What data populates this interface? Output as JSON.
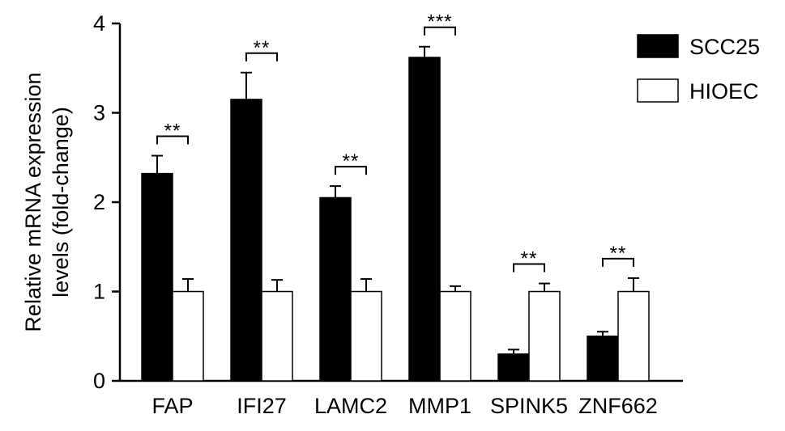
{
  "chart_data": {
    "type": "bar",
    "ylabel_lines": [
      "Relative mRNA expression",
      "levels (fold-change)"
    ],
    "categories": [
      "FAP",
      "IFI27",
      "LAMC2",
      "MMP1",
      "SPINK5",
      "ZNF662"
    ],
    "series": [
      {
        "name": "SCC25",
        "color": "#000000",
        "values": [
          2.32,
          3.15,
          2.05,
          3.62,
          0.3,
          0.5
        ],
        "errors": [
          0.2,
          0.3,
          0.13,
          0.12,
          0.05,
          0.05
        ]
      },
      {
        "name": "HIOEC",
        "color": "#ffffff",
        "values": [
          1.0,
          1.0,
          1.0,
          1.0,
          1.0,
          1.0
        ],
        "errors": [
          0.14,
          0.13,
          0.14,
          0.06,
          0.09,
          0.15
        ]
      }
    ],
    "significance": [
      "**",
      "**",
      "**",
      "***",
      "**",
      "**"
    ],
    "ylim": [
      0,
      4
    ],
    "yticks": [
      "0",
      "1",
      "2",
      "3",
      "4"
    ],
    "legend_position": "top-right",
    "grid": false
  }
}
